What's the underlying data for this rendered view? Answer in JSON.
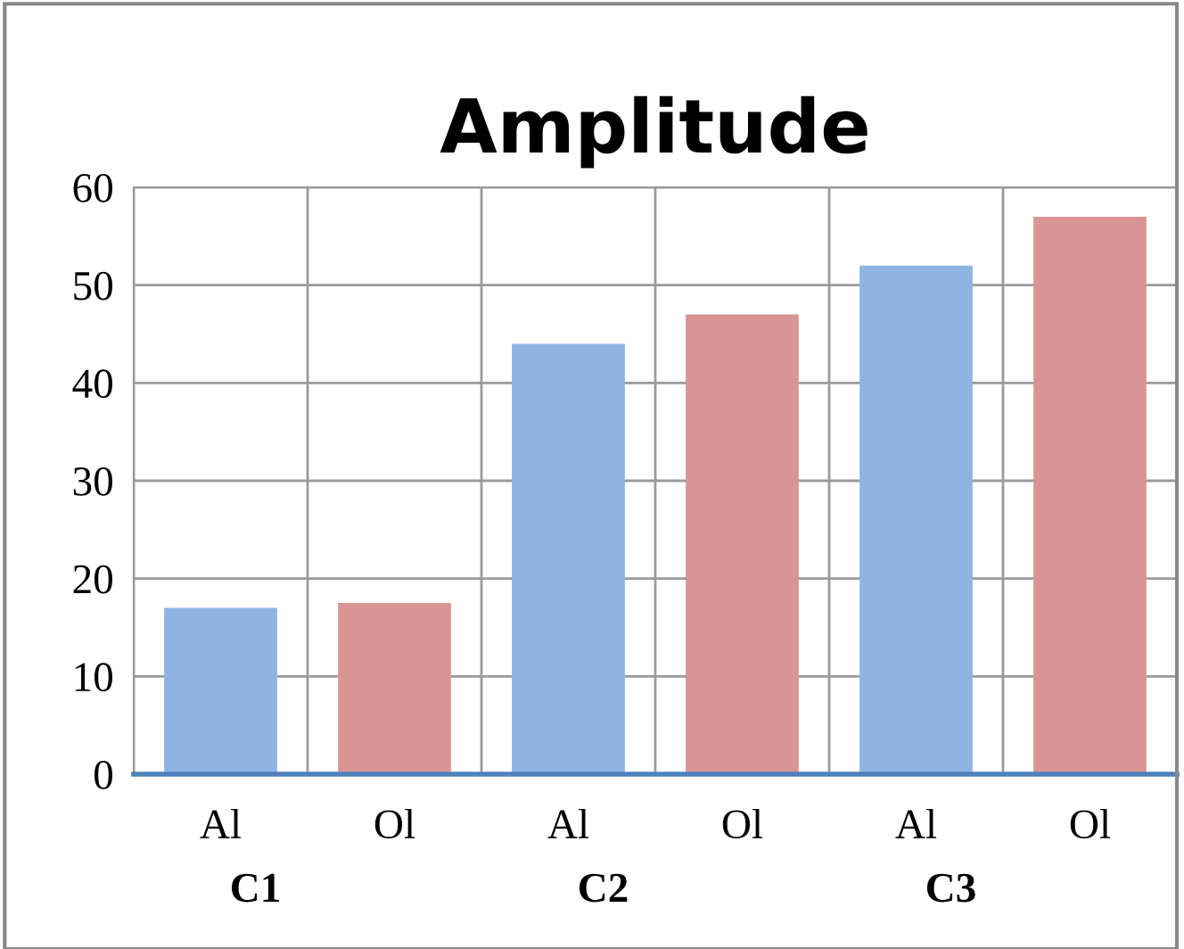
{
  "chart_data": {
    "type": "bar",
    "title": "Amplitude",
    "categories": [
      "Al",
      "Ol",
      "Al",
      "Ol",
      "Al",
      "Ol"
    ],
    "values": [
      17,
      17.5,
      44,
      47,
      52,
      57
    ],
    "colors": [
      "#8eb4e3",
      "#d99594",
      "#8eb4e3",
      "#d99594",
      "#8eb4e3",
      "#d99594"
    ],
    "annotations": [
      "C1",
      "C2",
      "C3"
    ],
    "ylim": [
      0,
      60
    ],
    "yticks": [
      0,
      10,
      20,
      30,
      40,
      50,
      60
    ],
    "grid": true
  }
}
